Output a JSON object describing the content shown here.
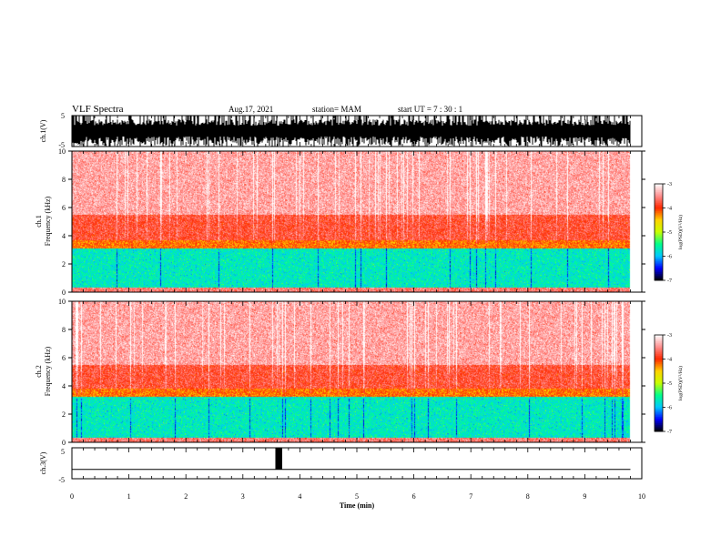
{
  "header": {
    "title": "VLF Spectra",
    "date": "Aug.17, 2021",
    "station": "station= MAM",
    "start": "start  UT  =   7 : 30 : 1"
  },
  "colors": {
    "spectrogram_scale": [
      "#000000",
      "#0000ff",
      "#00c8ff",
      "#00ff8c",
      "#c8ff00",
      "#ffd200",
      "#ff2800",
      "#ff9090",
      "#ffffff"
    ],
    "waveform": "#000000"
  },
  "chart_data": [
    {
      "type": "line",
      "name": "ch1-waveform",
      "ylabel": "ch.1(V)",
      "ylim": [
        -5,
        5
      ],
      "yticks": [
        "5",
        "-5"
      ],
      "x_range_min": [
        0,
        9.8
      ],
      "description_note": ""
    },
    {
      "type": "heatmap",
      "name": "ch1-spectrogram",
      "ylabel_line1": "ch.1",
      "ylabel_line2": "Frequency  (kHz)",
      "xlim": [
        0,
        10
      ],
      "ylim": [
        0,
        10
      ],
      "yticks": [
        "0",
        "2",
        "4",
        "6",
        "8",
        "10"
      ],
      "data_extent_min": 9.8,
      "bands_khz": [
        {
          "from": 0,
          "to": 0.3,
          "level": -3.6
        },
        {
          "from": 0.3,
          "to": 3.1,
          "level": -5.7
        },
        {
          "from": 3.1,
          "to": 3.7,
          "level": -4.2
        },
        {
          "from": 3.7,
          "to": 5.5,
          "level": -3.8
        },
        {
          "from": 5.5,
          "to": 10,
          "level": -3.4
        }
      ],
      "colorbar": {
        "min": -7,
        "max": -3,
        "ticks": [
          "-3",
          "-4",
          "-5",
          "-6",
          "-7"
        ],
        "label": "log(PSD)(V²/Hz)"
      }
    },
    {
      "type": "heatmap",
      "name": "ch2-spectrogram",
      "ylabel_line1": "ch.2",
      "ylabel_line2": "Frequency  (kHz)",
      "xlim": [
        0,
        10
      ],
      "ylim": [
        0,
        10
      ],
      "yticks": [
        "0",
        "2",
        "4",
        "6",
        "8",
        "10"
      ],
      "data_extent_min": 9.8,
      "bands_khz": [
        {
          "from": 0,
          "to": 0.3,
          "level": -3.6
        },
        {
          "from": 0.3,
          "to": 3.2,
          "level": -5.7
        },
        {
          "from": 3.2,
          "to": 3.8,
          "level": -4.2
        },
        {
          "from": 3.8,
          "to": 5.5,
          "level": -3.8
        },
        {
          "from": 5.5,
          "to": 10,
          "level": -3.4
        }
      ],
      "colorbar": {
        "min": -7,
        "max": -3,
        "ticks": [
          "-3",
          "-4",
          "-5",
          "-6",
          "-7"
        ],
        "label": "log(PSD)(V²/Hz)"
      }
    },
    {
      "type": "line",
      "name": "ch3-waveform",
      "ylabel": "ch.3(V)",
      "ylim": [
        -5,
        5
      ],
      "yticks": [
        "5",
        "-5"
      ],
      "baseline_v": -2.0,
      "pulse": {
        "from_min": 3.57,
        "to_min": 3.69,
        "low_v": -2.0,
        "high_v": 5.0
      },
      "xlabel": "Time  (min)",
      "xticks": [
        "0",
        "1",
        "2",
        "3",
        "4",
        "5",
        "6",
        "7",
        "8",
        "9",
        "10"
      ],
      "xlim": [
        0,
        10
      ]
    }
  ]
}
